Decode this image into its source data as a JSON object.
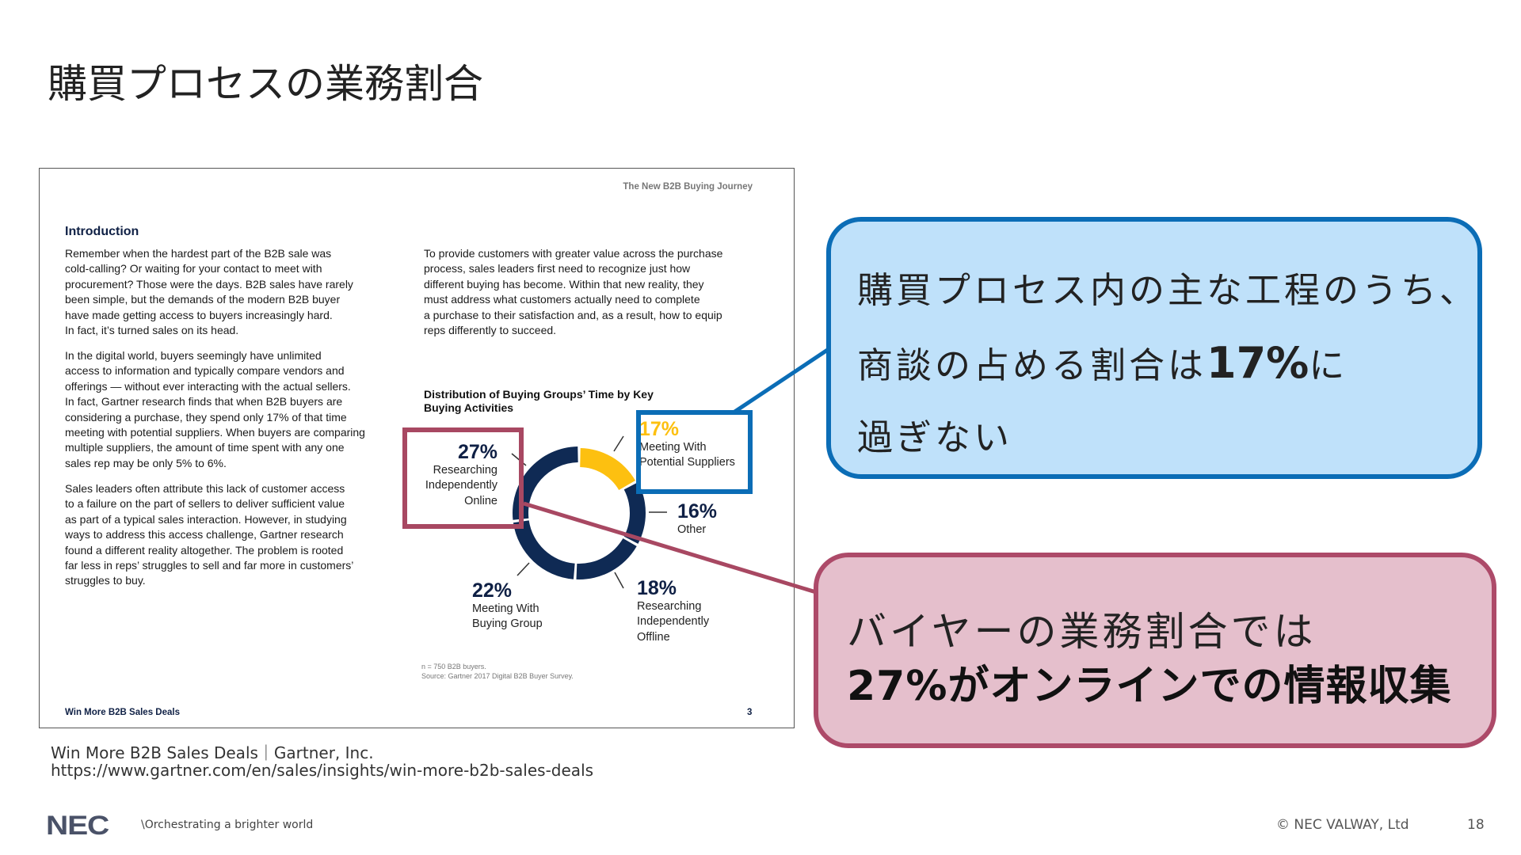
{
  "slide": {
    "title": "購買プロセスの業務割合",
    "page_number": "18",
    "copyright": "© NEC VALWAY, Ltd",
    "logo": "NEC",
    "tagline": "\\Orchestrating a brighter world",
    "source_line1": "Win More B2B Sales Deals｜Gartner, Inc.",
    "source_line2": "https://www.gartner.com/en/sales/insights/win-more-b2b-sales-deals"
  },
  "document": {
    "header": "The New B2B Buying Journey",
    "intro_heading": "Introduction",
    "left_paragraphs": [
      [
        "Remember when the hardest part of the B2B sale was",
        "cold-calling? Or waiting for your contact to meet with",
        "procurement? Those were the days. B2B sales have rarely",
        "been simple, but the demands of the modern B2B buyer",
        "have made getting access to buyers increasingly hard.",
        "In fact, it’s turned sales on its head."
      ],
      [
        "In the digital world, buyers seemingly have unlimited",
        "access to information and typically compare vendors and",
        "offerings — without ever interacting with the actual sellers.",
        "In fact, Gartner research finds that when B2B buyers are",
        "considering a purchase, they spend only 17% of that time",
        "meeting with potential suppliers. When buyers are comparing",
        "multiple suppliers, the amount of time spent with any one",
        "sales rep may be only 5% to 6%."
      ],
      [
        "Sales leaders often attribute this lack of customer access",
        "to a failure on the part of sellers to deliver sufficient value",
        "as part of a typical sales interaction. However, in studying",
        "ways to address this access challenge, Gartner research",
        "found a different reality altogether. The problem is rooted",
        "far less in reps’ struggles to sell and far more in customers’",
        "struggles to buy."
      ]
    ],
    "right_paragraph": [
      "To provide customers with greater value across the purchase",
      "process, sales leaders first need to recognize just how",
      "different buying has become. Within that new reality, they",
      "must address what customers actually need to complete",
      "a purchase to their satisfaction and, as a result, how to equip",
      "reps differently to succeed."
    ],
    "footnote_1": "n = 750 B2B buyers.",
    "footnote_2": "Source: Gartner 2017 Digital B2B Buyer Survey.",
    "footer_title": "Win More B2B Sales Deals",
    "footer_page": "3"
  },
  "chart_data": {
    "type": "pie",
    "variant": "donut",
    "title": "Distribution of Buying Groups’ Time by Key Buying Activities",
    "title_lines": [
      "Distribution of Buying Groups’ Time by Key",
      "Buying Activities"
    ],
    "start": "top, clockwise",
    "slices": [
      {
        "pct_label": "17%",
        "value": 17,
        "label_lines": [
          "Meeting With",
          "Potential Suppliers"
        ],
        "color": "#fdc010"
      },
      {
        "pct_label": "16%",
        "value": 16,
        "label_lines": [
          "Other"
        ],
        "color": "#0f2a54"
      },
      {
        "pct_label": "18%",
        "value": 18,
        "label_lines": [
          "Researching",
          "Independently",
          "Offline"
        ],
        "color": "#0f2a54"
      },
      {
        "pct_label": "22%",
        "value": 22,
        "label_lines": [
          "Meeting With",
          "Buying Group"
        ],
        "color": "#0f2a54"
      },
      {
        "pct_label": "27%",
        "value": 27,
        "label_lines": [
          "Researching",
          "Independently",
          "Online"
        ],
        "color": "#0f2a54"
      }
    ]
  },
  "callouts": {
    "blue": {
      "line1": "購買プロセス内の主な工程のうち、",
      "line2_pre": "商談の占める割合は",
      "line2_bold": "17%",
      "line2_post": "に",
      "line3": "過ぎない",
      "fill": "#bfe1fa",
      "border": "#0b6db6"
    },
    "pink": {
      "line1": "バイヤーの業務割合では",
      "line2": "27%がオンラインでの情報収集",
      "fill": "#e5bfcc",
      "border": "#ad4a69"
    }
  }
}
